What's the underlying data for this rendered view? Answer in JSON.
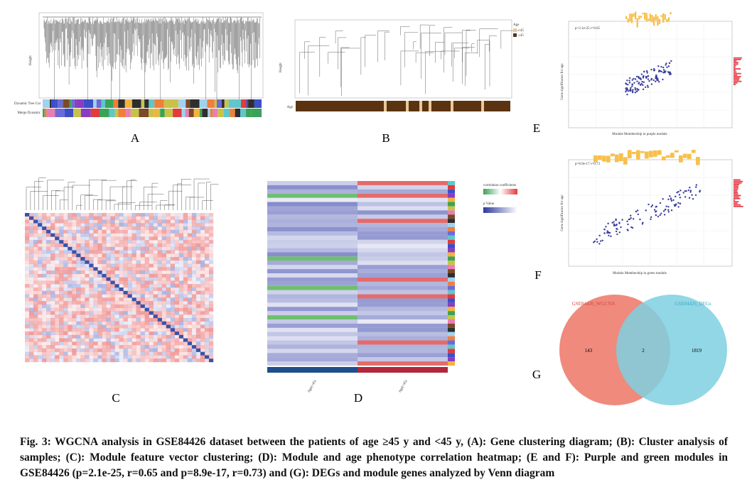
{
  "panels": {
    "A": {
      "label": "A",
      "y_axis": "Height",
      "tracks": [
        "Dynamic Tree Cut",
        "Merge Dynamic"
      ]
    },
    "B": {
      "label": "B",
      "y_axis": "Height",
      "yticks": [
        "0",
        "20,000",
        "40,000",
        "60,000",
        "80,000",
        "100,000",
        "120,000"
      ],
      "track": "Age",
      "legend": {
        "title": "Age",
        "items": [
          "<45",
          "≥45"
        ]
      }
    },
    "C": {
      "label": "C"
    },
    "D": {
      "label": "D",
      "legend_titles": [
        "correlation coefficients",
        "p Value"
      ],
      "groups": [
        "Age(>45)",
        "Age(<45)"
      ]
    },
    "E": {
      "label": "E",
      "annotation": "p=2.1e-25 r=0.65",
      "x_axis": "Module Membership in purple module",
      "y_axis": "Gene significance for age"
    },
    "F": {
      "label": "F",
      "annotation": "p=8.9e-17 r=0.73",
      "x_axis": "Module Membership in green module",
      "y_axis": "Gene significance for age"
    },
    "G": {
      "label": "G",
      "sets": [
        "GSE84426_WGCNA",
        "GSE84426_DEGs"
      ],
      "counts": [
        "143",
        "2",
        "1819"
      ]
    }
  },
  "caption": "Fig. 3: WGCNA analysis in GSE84426 dataset between the patients of age ≥45 y and <45 y, (A): Gene clustering diagram; (B): Cluster analysis of samples; (C): Module feature vector clustering; (D): Module and age phenotype correlation heatmap; (E and F): Purple and green modules in GSE84426 (p=2.1e-25, r=0.65 and p=8.9e-17, r=0.73) and (G): DEGs and module genes analyzed by Venn diagram"
}
